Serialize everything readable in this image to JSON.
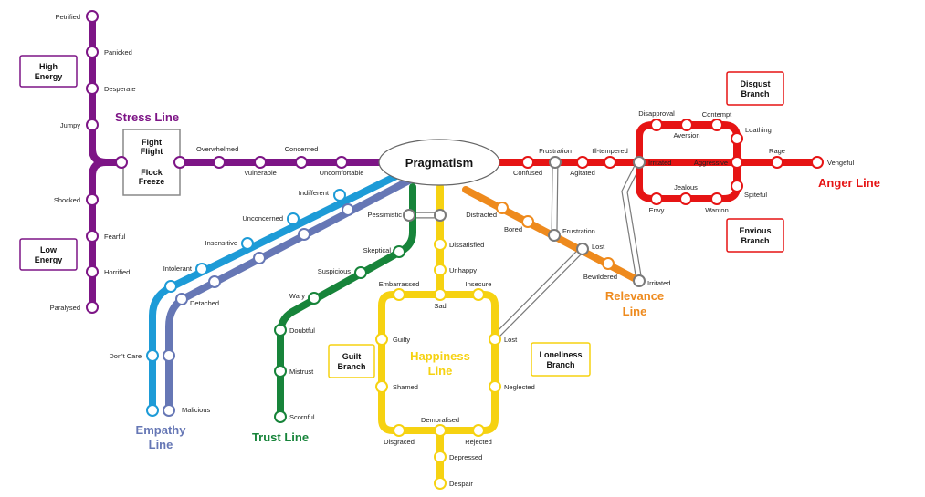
{
  "hub": {
    "label": "Pragmatism"
  },
  "interchange": {
    "label_lines": [
      "Fight",
      "Flight",
      "",
      "Flock",
      "Freeze"
    ]
  },
  "colors": {
    "stress": "#7d1586",
    "empathy_cyan": "#1d9bd7",
    "empathy_blue": "#6677b5",
    "trust": "#17843a",
    "happiness": "#f6d211",
    "relevance": "#ee8a1d",
    "anger": "#e61414",
    "connector": "#888888"
  },
  "lines": {
    "stress": "Stress Line",
    "empathy": [
      "Empathy",
      "Line"
    ],
    "trust": "Trust Line",
    "happiness": [
      "Happiness",
      "Line"
    ],
    "relevance": [
      "Relevance",
      "Line"
    ],
    "anger": "Anger Line"
  },
  "boxes": {
    "high_energy": [
      "High",
      "Energy"
    ],
    "low_energy": [
      "Low",
      "Energy"
    ],
    "guilt": [
      "Guilt",
      "Branch"
    ],
    "loneliness": [
      "Loneliness",
      "Branch"
    ],
    "disgust": [
      "Disgust",
      "Branch"
    ],
    "envious": [
      "Envious",
      "Branch"
    ]
  },
  "stations": {
    "petrified": "Petrified",
    "panicked": "Panicked",
    "desperate": "Desperate",
    "jumpy": "Jumpy",
    "shocked": "Shocked",
    "fearful": "Fearful",
    "horrified": "Horrified",
    "paralysed": "Paralysed",
    "overwhelmed": "Overwhelmed",
    "vulnerable": "Vulnerable",
    "concerned": "Concerned",
    "uncomfortable": "Uncomfortable",
    "indifferent": "Indifferent",
    "unconcerned": "Unconcerned",
    "insensitive": "Insensitive",
    "intolerant": "Intolerant",
    "dont_care": "Don't Care",
    "detached": "Detached",
    "malicious": "Malicious",
    "pessimistic": "Pessimistic",
    "skeptical": "Skeptical",
    "suspicious": "Suspicious",
    "wary": "Wary",
    "doubtful": "Doubtful",
    "mistrust": "Mistrust",
    "scornful": "Scornful",
    "dissatisfied": "Dissatisfied",
    "unhappy": "Unhappy",
    "sad": "Sad",
    "embarrassed": "Embarrassed",
    "insecure": "Insecure",
    "guilty": "Guilty",
    "shamed": "Shamed",
    "lost_h": "Lost",
    "neglected": "Neglected",
    "demoralised": "Demoralised",
    "disgraced": "Disgraced",
    "rejected": "Rejected",
    "depressed": "Depressed",
    "despair": "Despair",
    "distracted": "Distracted",
    "bored": "Bored",
    "frustration_r": "Frustration",
    "lost_r": "Lost",
    "bewildered": "Bewildered",
    "irritated_r": "Irritated",
    "confused": "Confused",
    "frustration_a": "Frustration",
    "agitated": "Agitated",
    "ill_tempered": "Ill-tempered",
    "irritated_a": "Irritated",
    "disapproval": "Disapproval",
    "aversion": "Aversion",
    "contempt": "Contempt",
    "loathing": "Loathing",
    "aggressive": "Aggressive",
    "rage": "Rage",
    "vengeful": "Vengeful",
    "jealous": "Jealous",
    "spiteful": "Spiteful",
    "envy": "Envy",
    "wanton": "Wanton"
  }
}
